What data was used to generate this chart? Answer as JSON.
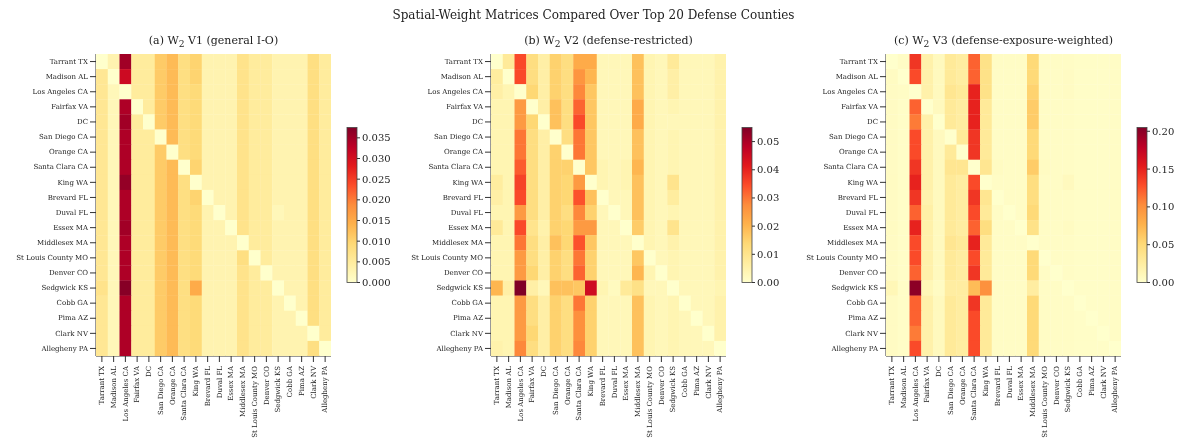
{
  "chart_data": [
    {
      "type": "heatmap",
      "title": "(a) W$_{2}$ V1 (general I-O)",
      "categories": [
        "Tarrant TX",
        "Madison AL",
        "Los Angeles CA",
        "Fairfax VA",
        "DC",
        "San Diego CA",
        "Orange CA",
        "Santa Clara CA",
        "King WA",
        "Brevard FL",
        "Duval FL",
        "Essex MA",
        "Middlesex MA",
        "St Louis County MO",
        "Denver CO",
        "Sedgwick KS",
        "Cobb GA",
        "Pima AZ",
        "Clark NV",
        "Allegheny PA"
      ],
      "y_categories": [
        "Tarrant TX",
        "Madison AL",
        "Los Angeles CA",
        "Fairfax VA",
        "DC",
        "San Diego CA",
        "Orange CA",
        "Santa Clara CA",
        "King WA",
        "Brevard FL",
        "Duval FL",
        "Essex MA",
        "Middlesex MA",
        "St Louis County MO",
        "Denver CO",
        "Sedgwick KS",
        "Cobb GA",
        "Pima AZ",
        "Clark NV",
        "Allegheny PA"
      ],
      "cells": [
        [
          0,
          0.003,
          0.035,
          0.005,
          0.005,
          0.011,
          0.013,
          0.008,
          0.01,
          0.003,
          0.003,
          0.003,
          0.007,
          0.005,
          0.005,
          0.003,
          0.003,
          0.003,
          0.008,
          0.005
        ],
        [
          0.006,
          0,
          0.031,
          0.005,
          0.005,
          0.011,
          0.013,
          0.008,
          0.01,
          0.003,
          0.003,
          0.003,
          0.007,
          0.005,
          0.005,
          0.003,
          0.003,
          0.003,
          0.008,
          0.005
        ],
        [
          0.006,
          0.002,
          0,
          0.005,
          0.005,
          0.011,
          0.013,
          0.008,
          0.009,
          0.003,
          0.003,
          0.003,
          0.007,
          0.005,
          0.005,
          0.003,
          0.003,
          0.003,
          0.008,
          0.005
        ],
        [
          0.006,
          0.002,
          0.034,
          0,
          0.005,
          0.011,
          0.013,
          0.008,
          0.009,
          0.003,
          0.003,
          0.003,
          0.007,
          0.005,
          0.005,
          0.003,
          0.003,
          0.003,
          0.008,
          0.005
        ],
        [
          0.006,
          0.002,
          0.035,
          0.005,
          0,
          0.011,
          0.013,
          0.008,
          0.009,
          0.003,
          0.003,
          0.003,
          0.007,
          0.005,
          0.005,
          0.003,
          0.003,
          0.003,
          0.008,
          0.005
        ],
        [
          0.006,
          0.002,
          0.034,
          0.005,
          0.005,
          0,
          0.013,
          0.008,
          0.009,
          0.003,
          0.003,
          0.003,
          0.007,
          0.005,
          0.005,
          0.003,
          0.003,
          0.003,
          0.008,
          0.005
        ],
        [
          0.006,
          0.002,
          0.034,
          0.005,
          0.005,
          0.011,
          0,
          0.008,
          0.009,
          0.003,
          0.003,
          0.003,
          0.007,
          0.005,
          0.005,
          0.003,
          0.003,
          0.003,
          0.008,
          0.005
        ],
        [
          0.006,
          0.002,
          0.034,
          0.005,
          0.005,
          0.011,
          0.013,
          0,
          0.01,
          0.003,
          0.003,
          0.003,
          0.007,
          0.005,
          0.005,
          0.003,
          0.003,
          0.003,
          0.008,
          0.005
        ],
        [
          0.006,
          0.002,
          0.036,
          0.005,
          0.005,
          0.011,
          0.013,
          0.008,
          0,
          0.003,
          0.003,
          0.003,
          0.007,
          0.005,
          0.005,
          0.003,
          0.003,
          0.003,
          0.008,
          0.005
        ],
        [
          0.006,
          0.002,
          0.034,
          0.005,
          0.005,
          0.011,
          0.013,
          0.008,
          0.01,
          0,
          0.003,
          0.003,
          0.007,
          0.005,
          0.005,
          0.003,
          0.003,
          0.003,
          0.008,
          0.005
        ],
        [
          0.006,
          0.002,
          0.034,
          0.005,
          0.005,
          0.011,
          0.013,
          0.008,
          0.009,
          0.003,
          0,
          0.003,
          0.007,
          0.005,
          0.005,
          0.002,
          0.003,
          0.003,
          0.008,
          0.005
        ],
        [
          0.006,
          0.002,
          0.035,
          0.005,
          0.005,
          0.011,
          0.013,
          0.008,
          0.009,
          0.003,
          0.003,
          0,
          0.007,
          0.005,
          0.005,
          0.003,
          0.003,
          0.003,
          0.008,
          0.005
        ],
        [
          0.006,
          0.002,
          0.034,
          0.005,
          0.005,
          0.011,
          0.013,
          0.008,
          0.009,
          0.003,
          0.003,
          0.003,
          0,
          0.005,
          0.005,
          0.003,
          0.003,
          0.003,
          0.008,
          0.005
        ],
        [
          0.006,
          0.002,
          0.034,
          0.005,
          0.005,
          0.011,
          0.013,
          0.008,
          0.009,
          0.003,
          0.003,
          0.003,
          0.008,
          0,
          0.005,
          0.003,
          0.003,
          0.003,
          0.008,
          0.005
        ],
        [
          0.006,
          0.002,
          0.034,
          0.005,
          0.005,
          0.011,
          0.013,
          0.008,
          0.009,
          0.003,
          0.003,
          0.003,
          0.007,
          0.005,
          0,
          0.003,
          0.003,
          0.003,
          0.008,
          0.005
        ],
        [
          0.007,
          0.002,
          0.037,
          0.005,
          0.005,
          0.011,
          0.013,
          0.008,
          0.015,
          0.003,
          0.003,
          0.003,
          0.007,
          0.005,
          0.005,
          0,
          0.003,
          0.003,
          0.008,
          0.005
        ],
        [
          0.006,
          0.002,
          0.034,
          0.005,
          0.005,
          0.011,
          0.013,
          0.008,
          0.009,
          0.003,
          0.003,
          0.003,
          0.007,
          0.005,
          0.005,
          0.003,
          0,
          0.003,
          0.008,
          0.005
        ],
        [
          0.006,
          0.002,
          0.034,
          0.005,
          0.005,
          0.011,
          0.013,
          0.008,
          0.009,
          0.003,
          0.003,
          0.003,
          0.007,
          0.005,
          0.005,
          0.003,
          0.003,
          0,
          0.008,
          0.005
        ],
        [
          0.006,
          0.002,
          0.034,
          0.005,
          0.005,
          0.011,
          0.013,
          0.008,
          0.009,
          0.003,
          0.003,
          0.003,
          0.007,
          0.005,
          0.005,
          0.003,
          0.003,
          0.003,
          0,
          0.005
        ],
        [
          0.006,
          0.002,
          0.034,
          0.005,
          0.005,
          0.011,
          0.013,
          0.008,
          0.009,
          0.003,
          0.003,
          0.003,
          0.007,
          0.005,
          0.005,
          0.003,
          0.003,
          0.003,
          0.008,
          0
        ]
      ],
      "clim": [
        0,
        0.0375
      ],
      "cticks": [
        {
          "value": 0,
          "label": "0.000"
        },
        {
          "value": 0.005,
          "label": "0.005"
        },
        {
          "value": 0.01,
          "label": "0.010"
        },
        {
          "value": 0.015,
          "label": "0.015"
        },
        {
          "value": 0.02,
          "label": "0.020"
        },
        {
          "value": 0.025,
          "label": "0.025"
        },
        {
          "value": 0.03,
          "label": "0.030"
        },
        {
          "value": 0.035,
          "label": "0.035"
        }
      ]
    },
    {
      "type": "heatmap",
      "title": "Spatial-Weight Matrices Compared Over Top 20 Defense Counties",
      "subtitle": "(b) W$_{2}$ V2 (defense-restricted)",
      "categories": [
        "Tarrant TX",
        "Madison AL",
        "Los Angeles CA",
        "Fairfax VA",
        "DC",
        "San Diego CA",
        "Orange CA",
        "Santa Clara CA",
        "King WA",
        "Brevard FL",
        "Duval FL",
        "Essex MA",
        "Middlesex MA",
        "St Louis County MO",
        "Denver CO",
        "Sedgwick KS",
        "Cobb GA",
        "Pima AZ",
        "Clark NV",
        "Allegheny PA"
      ],
      "y_categories": [
        "Tarrant TX",
        "Madison AL",
        "Los Angeles CA",
        "Fairfax VA",
        "DC",
        "San Diego CA",
        "Orange CA",
        "Santa Clara CA",
        "King WA",
        "Brevard FL",
        "Duval FL",
        "Essex MA",
        "Middlesex MA",
        "St Louis County MO",
        "Denver CO",
        "Sedgwick KS",
        "Cobb GA",
        "Pima AZ",
        "Clark NV",
        "Allegheny PA"
      ],
      "cells": [
        [
          0,
          0.008,
          0.035,
          0.012,
          0.006,
          0.015,
          0.012,
          0.022,
          0.022,
          0.003,
          0.003,
          0.003,
          0.018,
          0.004,
          0.003,
          0.008,
          0.003,
          0.003,
          0.003,
          0.005
        ],
        [
          0.007,
          0,
          0.035,
          0.012,
          0.006,
          0.015,
          0.012,
          0.026,
          0.02,
          0.003,
          0.003,
          0.003,
          0.018,
          0.004,
          0.003,
          0.006,
          0.003,
          0.003,
          0.003,
          0.005
        ],
        [
          0.006,
          0.004,
          0,
          0.014,
          0.006,
          0.015,
          0.012,
          0.028,
          0.017,
          0.003,
          0.003,
          0.003,
          0.018,
          0.004,
          0.003,
          0.006,
          0.003,
          0.003,
          0.003,
          0.005
        ],
        [
          0.004,
          0.004,
          0.025,
          0,
          0.006,
          0.018,
          0.012,
          0.032,
          0.017,
          0.003,
          0.003,
          0.003,
          0.022,
          0.004,
          0.003,
          0.004,
          0.003,
          0.003,
          0.003,
          0.005
        ],
        [
          0.004,
          0.004,
          0.025,
          0.014,
          0,
          0.018,
          0.012,
          0.035,
          0.017,
          0.003,
          0.003,
          0.003,
          0.022,
          0.004,
          0.003,
          0.003,
          0.003,
          0.003,
          0.003,
          0.005
        ],
        [
          0.004,
          0.004,
          0.03,
          0.012,
          0.006,
          0,
          0.012,
          0.03,
          0.017,
          0.003,
          0.003,
          0.003,
          0.018,
          0.004,
          0.003,
          0.004,
          0.003,
          0.003,
          0.003,
          0.005
        ],
        [
          0.004,
          0.004,
          0.03,
          0.012,
          0.006,
          0.015,
          0,
          0.03,
          0.017,
          0.003,
          0.003,
          0.003,
          0.018,
          0.004,
          0.003,
          0.004,
          0.003,
          0.003,
          0.003,
          0.005
        ],
        [
          0.004,
          0.004,
          0.033,
          0.012,
          0.006,
          0.015,
          0.015,
          0,
          0.017,
          0.004,
          0.003,
          0.004,
          0.02,
          0.004,
          0.003,
          0.004,
          0.003,
          0.003,
          0.003,
          0.005
        ],
        [
          0.007,
          0.004,
          0.036,
          0.012,
          0.006,
          0.015,
          0.014,
          0.025,
          0,
          0.004,
          0.003,
          0.004,
          0.018,
          0.004,
          0.003,
          0.01,
          0.003,
          0.003,
          0.003,
          0.005
        ],
        [
          0.006,
          0.004,
          0.035,
          0.012,
          0.006,
          0.015,
          0.014,
          0.034,
          0.018,
          0,
          0.003,
          0.003,
          0.018,
          0.004,
          0.003,
          0.007,
          0.003,
          0.003,
          0.003,
          0.005
        ],
        [
          0.004,
          0.004,
          0.025,
          0.012,
          0.006,
          0.015,
          0.012,
          0.028,
          0.015,
          0.003,
          0,
          0.003,
          0.018,
          0.004,
          0.003,
          0.004,
          0.003,
          0.003,
          0.003,
          0.005
        ],
        [
          0.008,
          0.004,
          0.035,
          0.01,
          0.005,
          0.015,
          0.014,
          0.025,
          0.025,
          0.003,
          0.003,
          0,
          0.016,
          0.004,
          0.003,
          0.01,
          0.003,
          0.003,
          0.003,
          0.005
        ],
        [
          0.004,
          0.004,
          0.03,
          0.012,
          0.006,
          0.018,
          0.014,
          0.034,
          0.017,
          0.003,
          0.003,
          0.003,
          0,
          0.004,
          0.003,
          0.005,
          0.003,
          0.003,
          0.003,
          0.005
        ],
        [
          0.004,
          0.004,
          0.025,
          0.012,
          0.006,
          0.015,
          0.012,
          0.03,
          0.015,
          0.003,
          0.003,
          0.003,
          0.017,
          0,
          0.003,
          0.004,
          0.003,
          0.003,
          0.003,
          0.005
        ],
        [
          0.004,
          0.004,
          0.025,
          0.014,
          0.006,
          0.015,
          0.012,
          0.032,
          0.015,
          0.003,
          0.003,
          0.003,
          0.02,
          0.004,
          0,
          0.004,
          0.003,
          0.003,
          0.003,
          0.005
        ],
        [
          0.02,
          0.006,
          0.055,
          0.006,
          0.003,
          0.018,
          0.018,
          0.017,
          0.045,
          0.004,
          0.002,
          0.008,
          0.011,
          0.003,
          0.003,
          0,
          0.003,
          0.003,
          0.003,
          0.004
        ],
        [
          0.004,
          0.004,
          0.025,
          0.012,
          0.006,
          0.015,
          0.012,
          0.03,
          0.015,
          0.003,
          0.003,
          0.003,
          0.018,
          0.004,
          0.003,
          0.004,
          0,
          0.003,
          0.003,
          0.005
        ],
        [
          0.004,
          0.004,
          0.025,
          0.012,
          0.006,
          0.015,
          0.012,
          0.027,
          0.015,
          0.003,
          0.003,
          0.003,
          0.018,
          0.004,
          0.003,
          0.004,
          0.003,
          0,
          0.003,
          0.005
        ],
        [
          0.004,
          0.004,
          0.025,
          0.014,
          0.006,
          0.015,
          0.012,
          0.027,
          0.015,
          0.003,
          0.003,
          0.003,
          0.018,
          0.004,
          0.003,
          0.004,
          0.003,
          0.003,
          0,
          0.005
        ],
        [
          0.005,
          0.004,
          0.028,
          0.012,
          0.006,
          0.015,
          0.012,
          0.028,
          0.015,
          0.003,
          0.003,
          0.003,
          0.018,
          0.004,
          0.003,
          0.004,
          0.003,
          0.003,
          0.003,
          0
        ]
      ],
      "clim": [
        0,
        0.055
      ],
      "cticks": [
        {
          "value": 0,
          "label": "0.00"
        },
        {
          "value": 0.01,
          "label": "0.01"
        },
        {
          "value": 0.02,
          "label": "0.02"
        },
        {
          "value": 0.03,
          "label": "0.03"
        },
        {
          "value": 0.04,
          "label": "0.04"
        },
        {
          "value": 0.05,
          "label": "0.05"
        }
      ]
    },
    {
      "type": "heatmap",
      "title": "(c) W$_{2}$ V3 (defense-exposure-weighted)",
      "categories": [
        "Tarrant TX",
        "Madison AL",
        "Los Angeles CA",
        "Fairfax VA",
        "DC",
        "San Diego CA",
        "Orange CA",
        "Santa Clara CA",
        "King WA",
        "Brevard FL",
        "Duval FL",
        "Essex MA",
        "Middlesex MA",
        "St Louis County MO",
        "Denver CO",
        "Sedgwick KS",
        "Cobb GA",
        "Pima AZ",
        "Clark NV",
        "Allegheny PA"
      ],
      "y_categories": [
        "Tarrant TX",
        "Madison AL",
        "Los Angeles CA",
        "Fairfax VA",
        "DC",
        "San Diego CA",
        "Orange CA",
        "Santa Clara CA",
        "King WA",
        "Brevard FL",
        "Duval FL",
        "Essex MA",
        "Middlesex MA",
        "St Louis County MO",
        "Denver CO",
        "Sedgwick KS",
        "Cobb GA",
        "Pima AZ",
        "Clark NV",
        "Allegheny PA"
      ],
      "cells": [
        [
          0,
          0.004,
          0.14,
          0.02,
          0.008,
          0.03,
          0.025,
          0.12,
          0.04,
          0.004,
          0.004,
          0.004,
          0.05,
          0.004,
          0.004,
          0.004,
          0.003,
          0.003,
          0.003,
          0.004
        ],
        [
          0.006,
          0,
          0.13,
          0.02,
          0.008,
          0.03,
          0.025,
          0.12,
          0.04,
          0.004,
          0.004,
          0.004,
          0.05,
          0.004,
          0.004,
          0.005,
          0.003,
          0.003,
          0.003,
          0.004
        ],
        [
          0.005,
          0.004,
          0,
          0.02,
          0.008,
          0.035,
          0.03,
          0.15,
          0.04,
          0.004,
          0.004,
          0.004,
          0.055,
          0.004,
          0.004,
          0.005,
          0.003,
          0.003,
          0.003,
          0.004
        ],
        [
          0.005,
          0.003,
          0.12,
          0,
          0.008,
          0.03,
          0.025,
          0.15,
          0.03,
          0.004,
          0.004,
          0.004,
          0.06,
          0.004,
          0.004,
          0.004,
          0.003,
          0.003,
          0.003,
          0.004
        ],
        [
          0.005,
          0.003,
          0.11,
          0.02,
          0,
          0.03,
          0.025,
          0.15,
          0.03,
          0.004,
          0.004,
          0.004,
          0.06,
          0.004,
          0.004,
          0.004,
          0.003,
          0.003,
          0.003,
          0.004
        ],
        [
          0.005,
          0.003,
          0.13,
          0.02,
          0.008,
          0,
          0.03,
          0.14,
          0.03,
          0.004,
          0.004,
          0.004,
          0.05,
          0.004,
          0.004,
          0.004,
          0.003,
          0.003,
          0.003,
          0.004
        ],
        [
          0.005,
          0.003,
          0.13,
          0.02,
          0.008,
          0.03,
          0,
          0.14,
          0.03,
          0.004,
          0.004,
          0.004,
          0.05,
          0.004,
          0.004,
          0.004,
          0.003,
          0.003,
          0.003,
          0.004
        ],
        [
          0.005,
          0.003,
          0.14,
          0.02,
          0.008,
          0.035,
          0.035,
          0,
          0.035,
          0.006,
          0.004,
          0.004,
          0.06,
          0.006,
          0.004,
          0.004,
          0.003,
          0.003,
          0.003,
          0.004
        ],
        [
          0.006,
          0.003,
          0.15,
          0.02,
          0.008,
          0.03,
          0.025,
          0.13,
          0,
          0.004,
          0.004,
          0.004,
          0.045,
          0.004,
          0.004,
          0.008,
          0.003,
          0.003,
          0.003,
          0.004
        ],
        [
          0.005,
          0.003,
          0.14,
          0.018,
          0.008,
          0.03,
          0.025,
          0.14,
          0.035,
          0,
          0.004,
          0.004,
          0.045,
          0.004,
          0.004,
          0.004,
          0.003,
          0.003,
          0.003,
          0.004
        ],
        [
          0.005,
          0.003,
          0.12,
          0.022,
          0.008,
          0.03,
          0.025,
          0.13,
          0.03,
          0.004,
          0,
          0.004,
          0.05,
          0.004,
          0.004,
          0.004,
          0.003,
          0.003,
          0.003,
          0.004
        ],
        [
          0.006,
          0.003,
          0.15,
          0.02,
          0.008,
          0.03,
          0.025,
          0.12,
          0.045,
          0.004,
          0.004,
          0,
          0.04,
          0.004,
          0.004,
          0.006,
          0.003,
          0.003,
          0.003,
          0.004
        ],
        [
          0.005,
          0.003,
          0.13,
          0.02,
          0.008,
          0.035,
          0.03,
          0.15,
          0.03,
          0.004,
          0.004,
          0.004,
          0,
          0.004,
          0.004,
          0.004,
          0.003,
          0.003,
          0.003,
          0.004
        ],
        [
          0.005,
          0.003,
          0.13,
          0.02,
          0.008,
          0.03,
          0.025,
          0.13,
          0.03,
          0.004,
          0.004,
          0.004,
          0.05,
          0,
          0.004,
          0.004,
          0.003,
          0.003,
          0.003,
          0.004
        ],
        [
          0.005,
          0.003,
          0.12,
          0.02,
          0.008,
          0.03,
          0.025,
          0.14,
          0.03,
          0.004,
          0.004,
          0.004,
          0.05,
          0.004,
          0,
          0.004,
          0.003,
          0.003,
          0.003,
          0.004
        ],
        [
          0.012,
          0.003,
          0.2,
          0.012,
          0.005,
          0.025,
          0.025,
          0.07,
          0.1,
          0.004,
          0.004,
          0.004,
          0.025,
          0.004,
          0.004,
          0,
          0.003,
          0.003,
          0.003,
          0.004
        ],
        [
          0.005,
          0.003,
          0.12,
          0.02,
          0.008,
          0.03,
          0.025,
          0.14,
          0.03,
          0.004,
          0.004,
          0.004,
          0.05,
          0.004,
          0.004,
          0.004,
          0,
          0.003,
          0.003,
          0.004
        ],
        [
          0.005,
          0.003,
          0.12,
          0.02,
          0.008,
          0.03,
          0.025,
          0.13,
          0.03,
          0.004,
          0.004,
          0.004,
          0.05,
          0.004,
          0.004,
          0.004,
          0.003,
          0,
          0.003,
          0.004
        ],
        [
          0.005,
          0.003,
          0.11,
          0.02,
          0.008,
          0.03,
          0.025,
          0.13,
          0.03,
          0.004,
          0.004,
          0.004,
          0.05,
          0.004,
          0.004,
          0.004,
          0.003,
          0.003,
          0,
          0.004
        ],
        [
          0.005,
          0.003,
          0.13,
          0.02,
          0.008,
          0.03,
          0.025,
          0.13,
          0.03,
          0.004,
          0.004,
          0.004,
          0.05,
          0.004,
          0.004,
          0.004,
          0.003,
          0.003,
          0.003,
          0
        ]
      ],
      "clim": [
        0,
        0.205
      ],
      "cticks": [
        {
          "value": 0,
          "label": "0.00"
        },
        {
          "value": 0.05,
          "label": "0.05"
        },
        {
          "value": 0.1,
          "label": "0.10"
        },
        {
          "value": 0.15,
          "label": "0.15"
        },
        {
          "value": 0.2,
          "label": "0.20"
        }
      ]
    }
  ]
}
